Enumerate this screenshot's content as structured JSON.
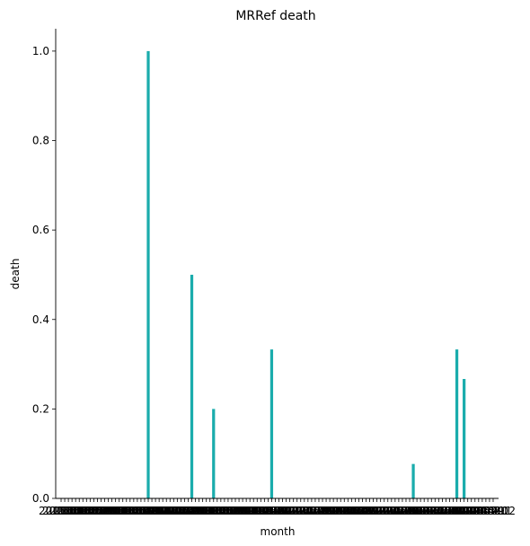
{
  "chart_data": {
    "type": "bar",
    "title": "MRRef death",
    "xlabel": "month",
    "ylabel": "death",
    "ylim": [
      0,
      1.05
    ],
    "yticks": [
      "0.0",
      "0.2",
      "0.4",
      "0.6",
      "0.8",
      "1.0"
    ],
    "ytick_values": [
      0.0,
      0.2,
      0.4,
      0.6,
      0.8,
      1.0
    ],
    "bar_color": "#1aacac",
    "grid": false,
    "legend": "none",
    "categories": [
      "2015-01",
      "2015-02",
      "2015-03",
      "2015-04",
      "2015-05",
      "2015-06",
      "2015-07",
      "2015-08",
      "2015-09",
      "2015-10",
      "2015-11",
      "2015-12",
      "2016-01",
      "2016-02",
      "2016-03",
      "2016-04",
      "2016-05",
      "2016-06",
      "2016-07",
      "2016-08",
      "2016-09",
      "2016-10",
      "2016-11",
      "2016-12",
      "2017-01",
      "2017-02",
      "2017-03",
      "2017-04",
      "2017-05",
      "2017-06",
      "2017-07",
      "2017-08",
      "2017-09",
      "2017-10",
      "2017-11",
      "2017-12",
      "2018-01",
      "2018-02",
      "2018-03",
      "2018-04",
      "2018-05",
      "2018-06",
      "2018-07",
      "2018-08",
      "2018-09",
      "2018-10",
      "2018-11",
      "2018-12",
      "2019-01",
      "2019-02",
      "2019-03",
      "2019-04",
      "2019-05",
      "2019-06",
      "2019-07",
      "2019-08",
      "2019-09",
      "2019-10",
      "2019-11",
      "2019-12",
      "2020-01",
      "2020-02",
      "2020-03",
      "2020-04",
      "2020-05",
      "2020-06",
      "2020-07",
      "2020-08",
      "2020-09",
      "2020-10",
      "2020-11",
      "2020-12",
      "2021-01",
      "2021-02",
      "2021-03",
      "2021-04",
      "2021-05",
      "2021-06",
      "2021-07",
      "2021-08",
      "2021-09",
      "2021-10",
      "2021-11",
      "2021-12",
      "2022-01",
      "2022-02",
      "2022-03",
      "2022-04",
      "2022-05",
      "2022-06",
      "2022-07",
      "2022-08",
      "2022-09",
      "2022-10",
      "2022-11",
      "2022-12",
      "2023-01",
      "2023-02",
      "2023-03",
      "2023-04",
      "2023-05",
      "2023-06",
      "2023-07",
      "2023-08",
      "2023-09",
      "2023-10",
      "2023-11",
      "2023-12",
      "2024-01",
      "2024-02",
      "2024-03",
      "2024-04",
      "2024-05",
      "2024-06",
      "2024-07",
      "2024-08",
      "2024-09",
      "2024-10",
      "2024-11",
      "2024-12"
    ],
    "values": [
      0,
      0,
      0,
      0,
      0,
      0,
      0,
      0,
      0,
      0,
      0,
      0,
      0,
      0,
      0,
      0,
      0,
      0,
      0,
      0,
      0,
      0,
      0,
      0,
      1.0,
      0,
      0,
      0,
      0,
      0,
      0,
      0,
      0,
      0,
      0,
      0,
      0.5,
      0,
      0,
      0,
      0,
      0,
      0.2,
      0,
      0,
      0,
      0,
      0,
      0,
      0,
      0,
      0,
      0,
      0,
      0,
      0,
      0,
      0,
      0.333,
      0,
      0,
      0,
      0,
      0,
      0,
      0,
      0,
      0,
      0,
      0,
      0,
      0,
      0,
      0,
      0,
      0,
      0,
      0,
      0,
      0,
      0,
      0,
      0,
      0,
      0,
      0,
      0,
      0,
      0,
      0,
      0,
      0,
      0,
      0,
      0,
      0,
      0,
      0.077,
      0,
      0,
      0,
      0,
      0,
      0,
      0,
      0,
      0,
      0,
      0,
      0.333,
      0,
      0.267,
      0,
      0,
      0,
      0,
      0,
      0,
      0,
      0
    ]
  }
}
